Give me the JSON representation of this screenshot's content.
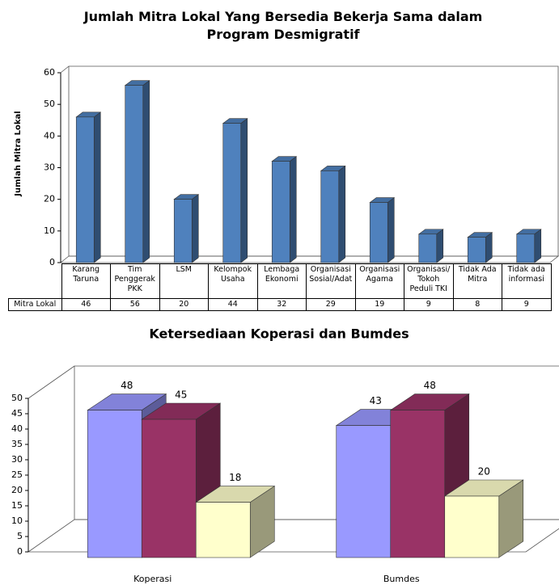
{
  "chart_data": [
    {
      "type": "bar3d",
      "title": "Jumlah Mitra Lokal Yang Bersedia Bekerja Sama dalam Program Desmigratif",
      "y_label": "Jumlah Mitra Lokal",
      "categories": [
        "Karang Taruna",
        "Tim Penggerak PKK",
        "LSM",
        "Kelompok Usaha",
        "Lembaga Ekonomi",
        "Organisasi Sosial/Adat",
        "Organisasi Agama",
        "Organisasi/ Tokoh Peduli TKI",
        "Tidak Ada Mitra",
        "Tidak ada informasi"
      ],
      "series": [
        {
          "name": "Mitra Lokal",
          "color": "#4f81bd",
          "values": [
            46,
            56,
            20,
            44,
            32,
            29,
            19,
            9,
            8,
            9
          ]
        }
      ],
      "ylim": [
        0,
        60
      ],
      "yticks": [
        0,
        10,
        20,
        30,
        40,
        50,
        60
      ],
      "data_table": true
    },
    {
      "type": "bar3d",
      "title": "Ketersediaan Koperasi dan Bumdes",
      "categories": [
        "Koperasi",
        "Bumdes"
      ],
      "series": [
        {
          "color": "#9999ff",
          "values": [
            48,
            43
          ]
        },
        {
          "color": "#993366",
          "values": [
            45,
            48
          ]
        },
        {
          "color": "#ffffcc",
          "values": [
            18,
            20
          ]
        }
      ],
      "ylim": [
        0,
        50
      ],
      "yticks": [
        0,
        5,
        10,
        15,
        20,
        25,
        30,
        35,
        40,
        45,
        50
      ],
      "data_labels": true
    }
  ]
}
